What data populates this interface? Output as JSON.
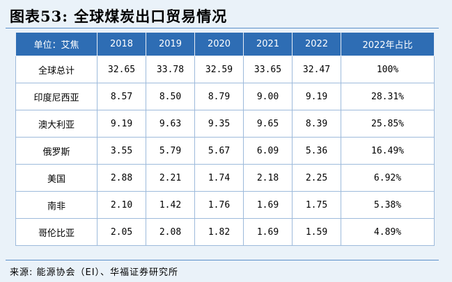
{
  "title": "图表53:  全球煤炭出口贸易情况",
  "table": {
    "headers": [
      "单位：艾焦",
      "2018",
      "2019",
      "2020",
      "2021",
      "2022",
      "2022年占比"
    ],
    "rows": [
      [
        "全球总计",
        "32.65",
        "33.78",
        "32.59",
        "33.65",
        "32.47",
        "100%"
      ],
      [
        "印度尼西亚",
        "8.57",
        "8.50",
        "8.79",
        "9.00",
        "9.19",
        "28.31%"
      ],
      [
        "澳大利亚",
        "9.19",
        "9.63",
        "9.35",
        "9.65",
        "8.39",
        "25.85%"
      ],
      [
        "俄罗斯",
        "3.55",
        "5.79",
        "5.67",
        "6.09",
        "5.36",
        "16.49%"
      ],
      [
        "美国",
        "2.88",
        "2.21",
        "1.74",
        "2.18",
        "2.25",
        "6.92%"
      ],
      [
        "南非",
        "2.10",
        "1.42",
        "1.76",
        "1.69",
        "1.75",
        "5.38%"
      ],
      [
        "哥伦比亚",
        "2.05",
        "2.08",
        "1.82",
        "1.69",
        "1.59",
        "4.89%"
      ]
    ]
  },
  "source": "来源:  能源协会（EI）、华福证券研究所"
}
